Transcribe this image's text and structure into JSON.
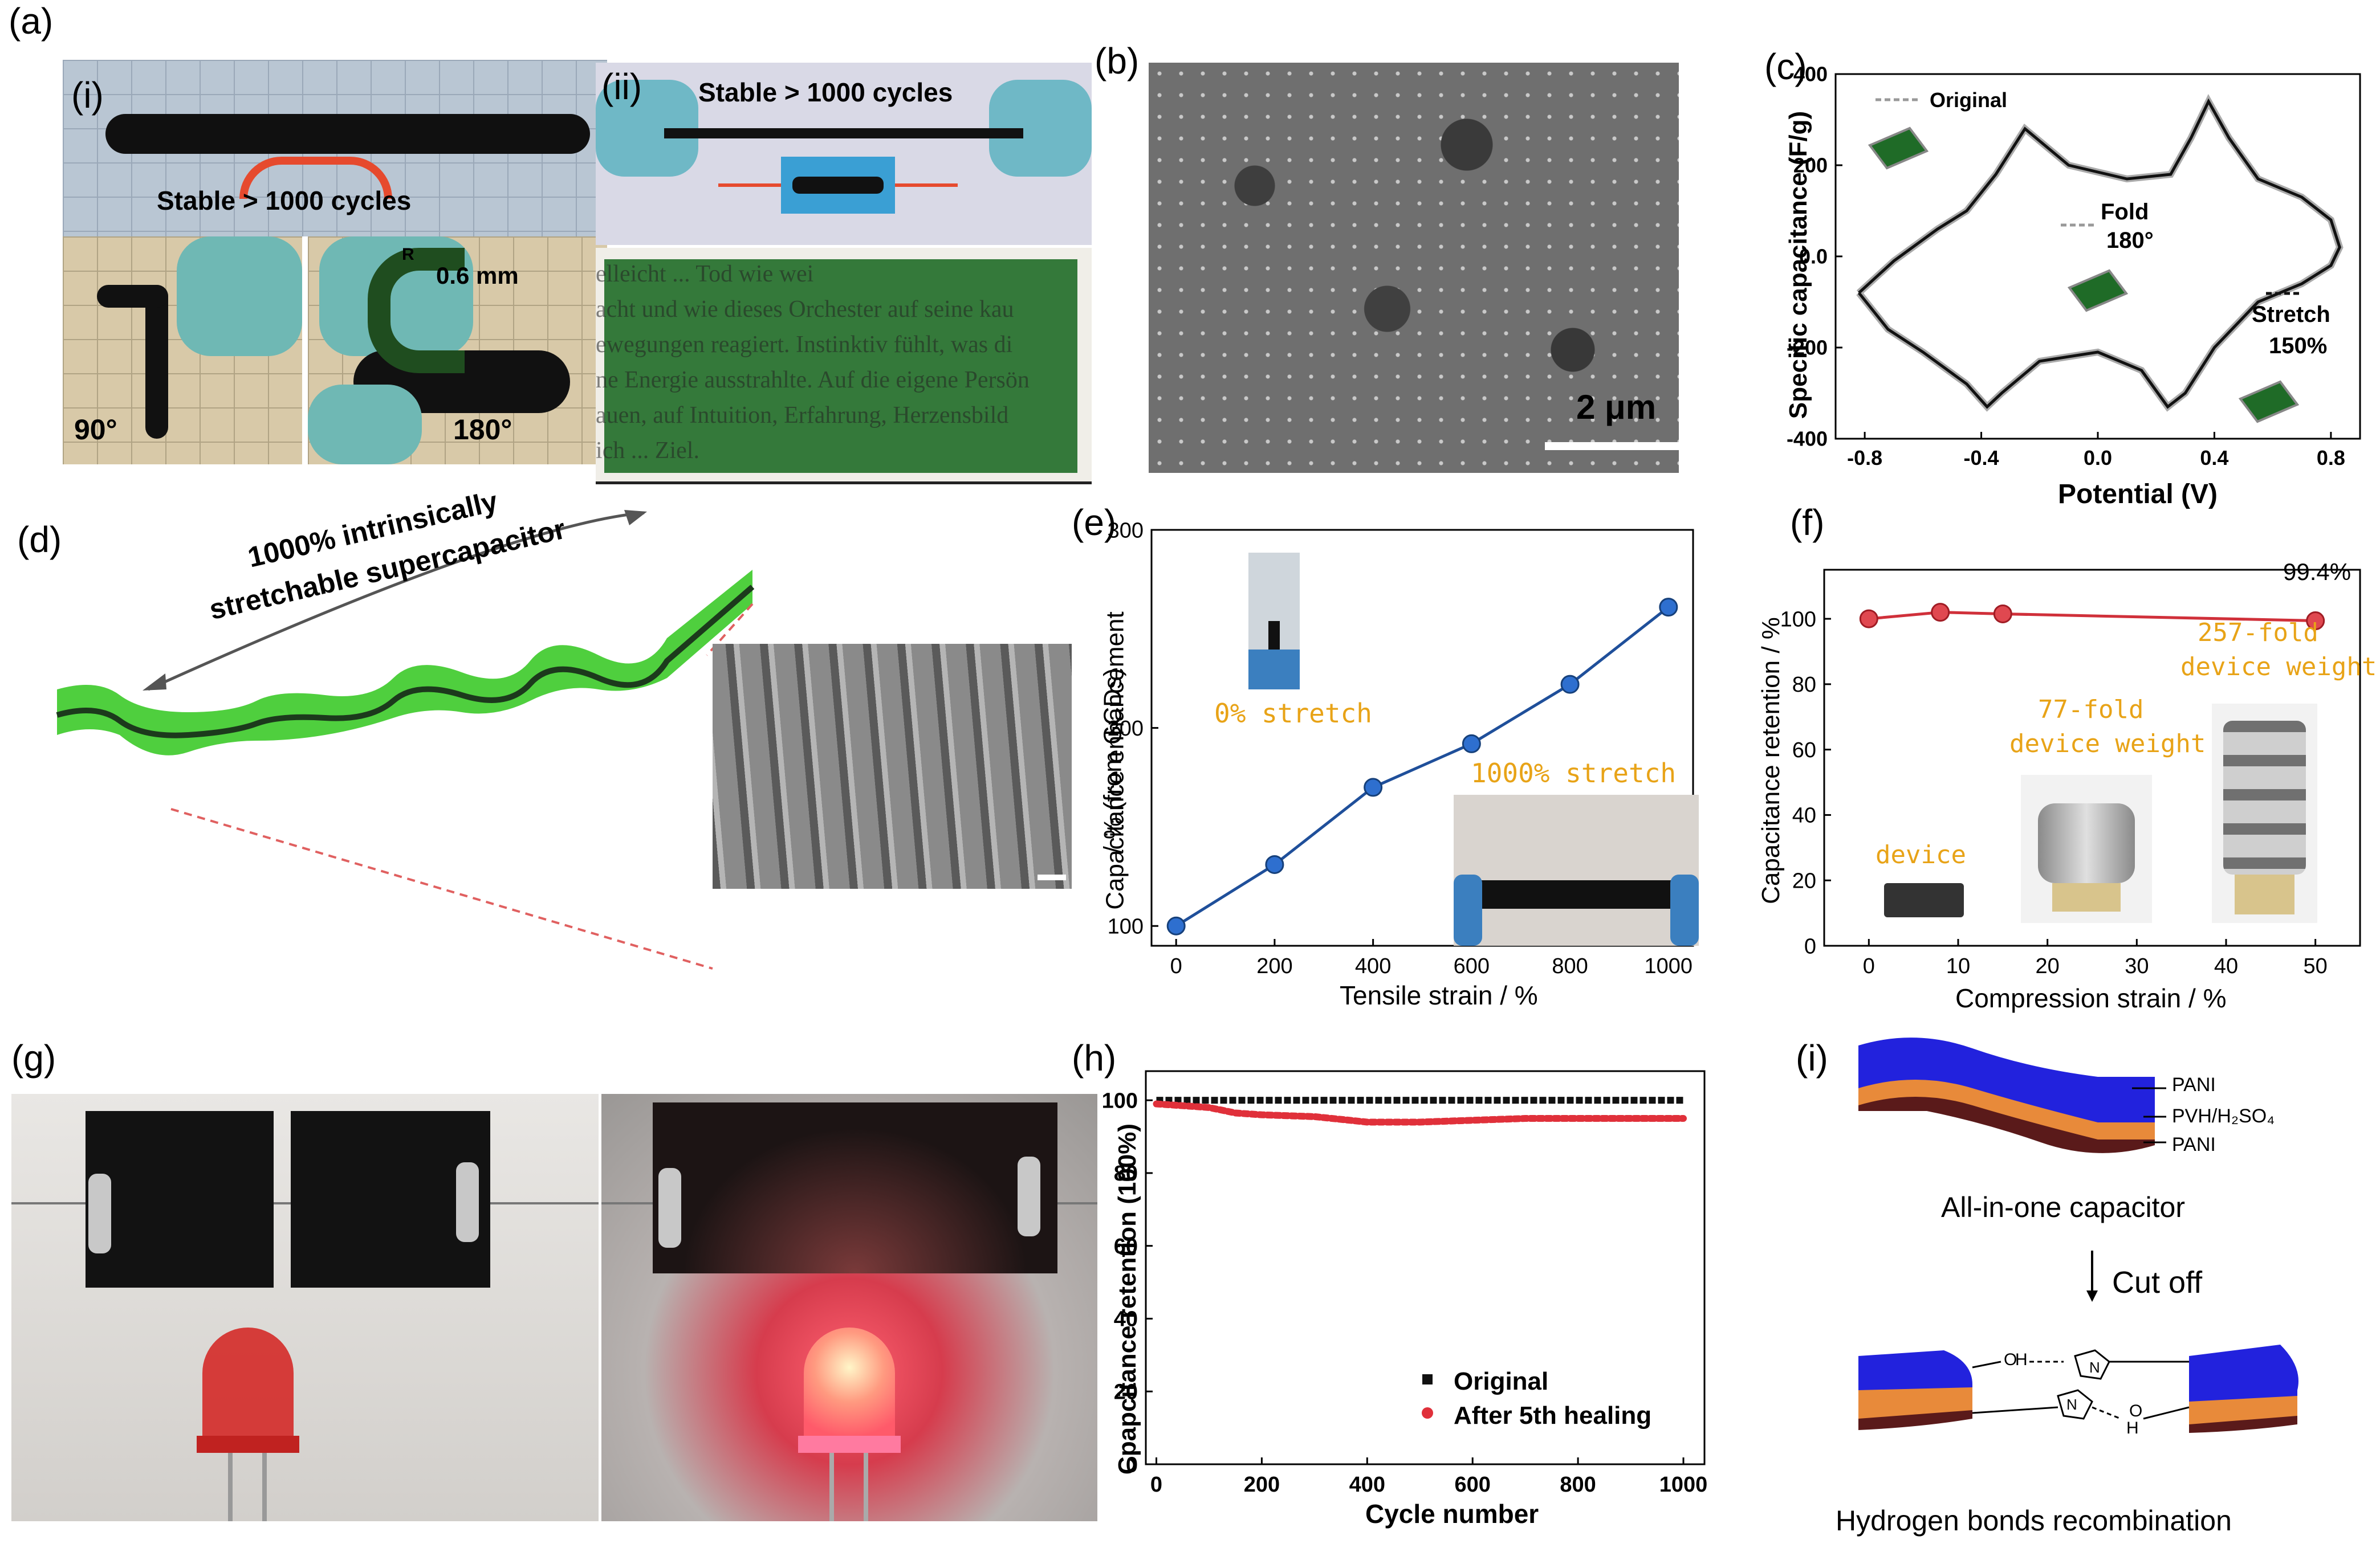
{
  "panels": {
    "a": {
      "label": "(a)",
      "sub_i": "(i)",
      "sub_ii": "(ii)",
      "stable_i": "Stable > 1000 cycles",
      "stable_ii": "Stable > 1000 cycles",
      "radius_label": "R",
      "radius": "0.6 mm",
      "angle_90": "90°",
      "angle_180": "180°",
      "text_lines": [
        "elleicht ... Tod wie wei",
        "acht und wie dieses Orchester auf seine kau",
        "ewegungen reagiert. Instinktiv fühlt, was di",
        "ne Energie ausstrahlte. Auf die eigene Persön",
        "auen, auf Intuition, Erfahrung, Herzensbild",
        "ich ... Ziel."
      ]
    },
    "b": {
      "label": "(b)",
      "scale": "2 μm"
    },
    "c": {
      "label": "(c)",
      "legend_original": "Original",
      "fold": "Fold",
      "fold_angle": "180°",
      "stretch": "Stretch",
      "stretch_pct": "150%",
      "ylabel": "Specific capacitance (F/g)",
      "xlabel": "Potential (V)"
    },
    "d": {
      "label": "(d)",
      "title_1": "1000% intrinsically",
      "title_2": "stretchable supercapacitor"
    },
    "e": {
      "label": "(e)",
      "ylabel_1": "Capacitance enhancement",
      "ylabel_2": "/ % (from GCDs)",
      "xlabel": "Tensile strain / %",
      "inset_0": "0% stretch",
      "inset_1000": "1000% stretch"
    },
    "f": {
      "label": "(f)",
      "ylabel": "Capacitance retention / %",
      "xlabel": "Compression strain / %",
      "annotation": "99.4%",
      "device": "device",
      "w77_1": "77-fold",
      "w77_2": "device weight",
      "w257_1": "257-fold",
      "w257_2": "device weight"
    },
    "g": {
      "label": "(g)"
    },
    "h": {
      "label": "(h)",
      "ylabel": "Cpapcitance retention (100%)",
      "xlabel": "Cycle number",
      "legend": [
        "Original",
        "After 5th healing"
      ]
    },
    "i": {
      "label": "(i)",
      "layer_top": "PANI",
      "layer_mid": "PVH/H₂SO₄",
      "layer_bot": "PANI",
      "caption_top": "All-in-one capacitor",
      "cut": "Cut off",
      "caption_bottom": "Hydrogen bonds recombination",
      "atom_o": "O",
      "atom_h": "H",
      "atom_n": "N"
    }
  },
  "chart_data": [
    {
      "type": "line",
      "panel": "c",
      "xlim": [
        -0.9,
        0.9
      ],
      "ylim": [
        -400,
        400
      ],
      "xticks": [
        "-0.8",
        "-0.4",
        "0.0",
        "0.4",
        "0.8"
      ],
      "yticks": [
        "400",
        "200",
        "0.0",
        "-200",
        "-400"
      ],
      "series": [
        {
          "name": "Original",
          "x": [
            -0.82,
            -0.7,
            -0.55,
            -0.45,
            -0.35,
            -0.25,
            -0.1,
            0.1,
            0.25,
            0.32,
            0.38,
            0.45,
            0.55,
            0.7,
            0.8,
            0.83,
            0.8,
            0.7,
            0.55,
            0.4,
            0.3,
            0.24,
            0.15,
            0.0,
            -0.2,
            -0.33,
            -0.38,
            -0.45,
            -0.6,
            -0.72,
            -0.82
          ],
          "y": [
            -80,
            -10,
            60,
            100,
            180,
            280,
            200,
            170,
            180,
            260,
            340,
            260,
            170,
            130,
            80,
            20,
            -20,
            -60,
            -100,
            -200,
            -300,
            -330,
            -250,
            -210,
            -230,
            -300,
            -330,
            -280,
            -210,
            -160,
            -80
          ]
        }
      ]
    },
    {
      "type": "line",
      "panel": "e",
      "x": [
        0,
        200,
        400,
        600,
        800,
        1000
      ],
      "values": [
        100,
        131,
        170,
        192,
        222,
        261
      ],
      "xlim": [
        -50,
        1050
      ],
      "ylim": [
        90,
        300
      ],
      "xticks": [
        "0",
        "200",
        "400",
        "600",
        "800",
        "1000"
      ],
      "yticks": [
        "100",
        "200",
        "300"
      ]
    },
    {
      "type": "line",
      "panel": "f",
      "x": [
        0,
        8,
        15,
        50
      ],
      "values": [
        100,
        102,
        101.5,
        99.4
      ],
      "xlim": [
        -5,
        55
      ],
      "ylim": [
        0,
        115
      ],
      "xticks": [
        "0",
        "10",
        "20",
        "30",
        "40",
        "50"
      ],
      "yticks": [
        "0",
        "20",
        "40",
        "60",
        "80",
        "100"
      ]
    },
    {
      "type": "scatter",
      "panel": "h",
      "xlim": [
        -20,
        1040
      ],
      "ylim": [
        0,
        108
      ],
      "xticks": [
        "0",
        "200",
        "400",
        "600",
        "800",
        "1000"
      ],
      "yticks": [
        "0",
        "20",
        "40",
        "60",
        "80",
        "100"
      ],
      "series": [
        {
          "name": "Original",
          "x": [
            0,
            1000
          ],
          "values": [
            100,
            100
          ]
        },
        {
          "name": "After 5th healing",
          "x": [
            0,
            50,
            100,
            150,
            200,
            300,
            400,
            500,
            600,
            700,
            800,
            900,
            1000
          ],
          "values": [
            99,
            98.5,
            98,
            96.5,
            96,
            95.5,
            94,
            94,
            94.5,
            95,
            95,
            95,
            95
          ]
        }
      ]
    }
  ]
}
